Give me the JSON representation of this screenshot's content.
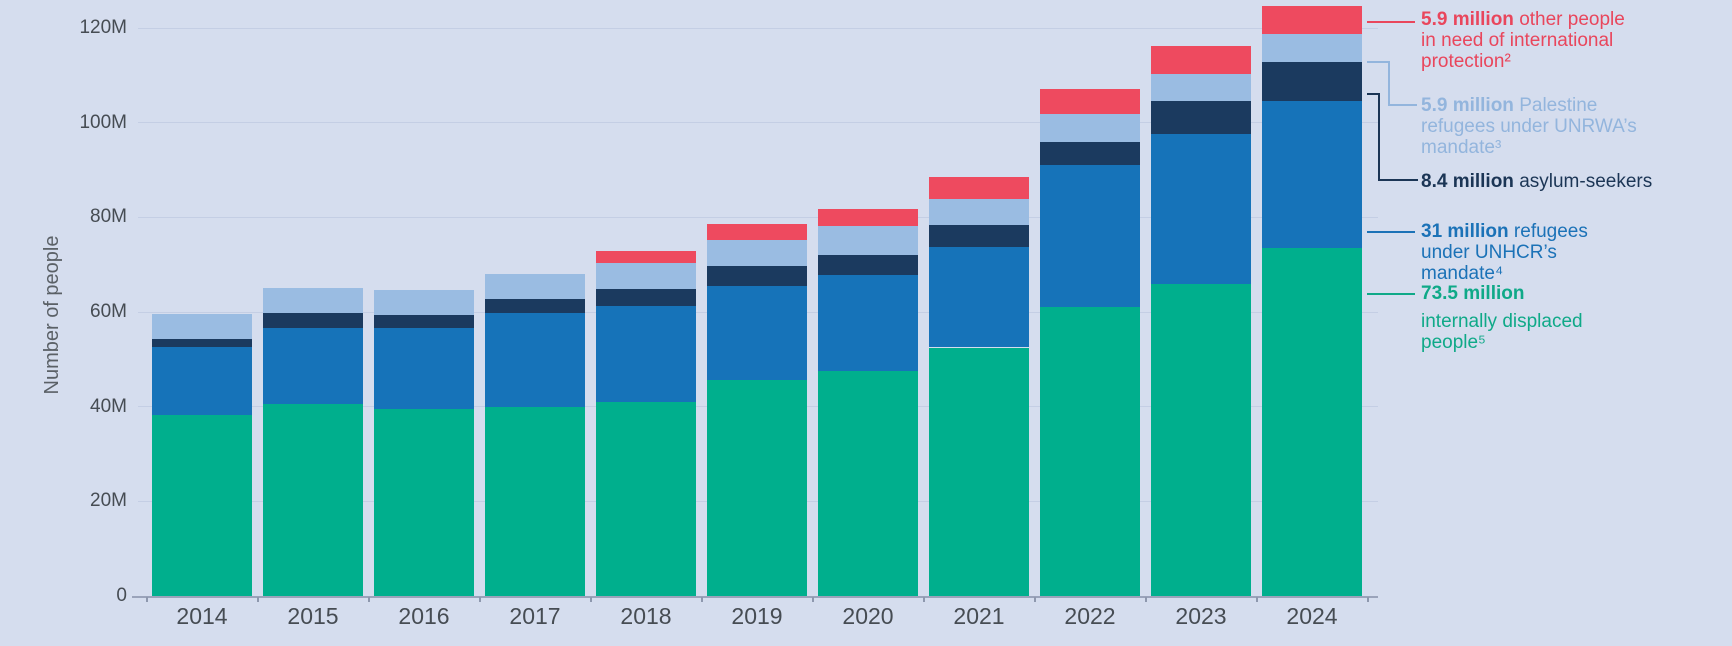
{
  "chart_data": {
    "type": "bar",
    "stacked": true,
    "title": "",
    "xlabel": "",
    "ylabel": "Number of people",
    "ylim": [
      0,
      124.7
    ],
    "grid": true,
    "legend_position": "right",
    "categories": [
      "2014",
      "2015",
      "2016",
      "2017",
      "2018",
      "2019",
      "2020",
      "2021",
      "2022",
      "2023",
      "2024"
    ],
    "units": "millions of people",
    "series": [
      {
        "key": "idp",
        "name": "internally displaced people",
        "color": "#00AF8D",
        "values": [
          38.2,
          40.5,
          39.5,
          39.9,
          41.0,
          45.7,
          47.5,
          52.5,
          61.0,
          66.0,
          73.5
        ]
      },
      {
        "key": "refugees_unhcr",
        "name": "refugees under UNHCR’s mandate",
        "color": "#1673B9",
        "values": [
          14.4,
          16.1,
          17.2,
          19.9,
          20.2,
          19.7,
          20.4,
          21.3,
          30.1,
          31.6,
          31.0
        ]
      },
      {
        "key": "asylum_seekers",
        "name": "asylum-seekers",
        "color": "#1B3A5F",
        "values": [
          1.8,
          3.2,
          2.7,
          3.0,
          3.7,
          4.3,
          4.2,
          4.5,
          4.8,
          6.9,
          8.4
        ]
      },
      {
        "key": "unrwa",
        "name": "Palestine refugees under UNRWA’s mandate",
        "color": "#9ABCE2",
        "values": [
          5.2,
          5.3,
          5.2,
          5.3,
          5.4,
          5.6,
          6.0,
          5.6,
          6.0,
          5.8,
          5.9
        ]
      },
      {
        "key": "oip",
        "name": "other people in need of international protection",
        "color": "#EE4A5F",
        "values": [
          0,
          0,
          0,
          0,
          2.5,
          3.3,
          3.6,
          4.7,
          5.3,
          5.9,
          5.9
        ]
      }
    ],
    "yticks": [
      {
        "v": 0,
        "label": "0"
      },
      {
        "v": 20,
        "label": "20M"
      },
      {
        "v": 40,
        "label": "40M"
      },
      {
        "v": 60,
        "label": "60M"
      },
      {
        "v": 80,
        "label": "80M"
      },
      {
        "v": 100,
        "label": "100M"
      },
      {
        "v": 120,
        "label": "120M"
      }
    ]
  },
  "legend": {
    "oip": {
      "bold": "5.9 million",
      "rest": " other people in need of international protection²",
      "color": "#E9465C"
    },
    "unrwa": {
      "bold": "5.9 million",
      "rest": " Palestine refugees under UNRWA’s mandate³",
      "color": "#93B5DD"
    },
    "asylum": {
      "bold": "8.4 million",
      "rest": " asylum-seekers",
      "color": "#1B3555"
    },
    "refugees": {
      "bold": "31 million",
      "rest": " refugees under UNHCR’s mandate⁴",
      "color": "#1B72B7"
    },
    "idp": {
      "bold": "73.5 million",
      "rest": "internally displaced people⁵",
      "color": "#0FA988"
    }
  },
  "axis": {
    "y_title": "Number of people"
  }
}
